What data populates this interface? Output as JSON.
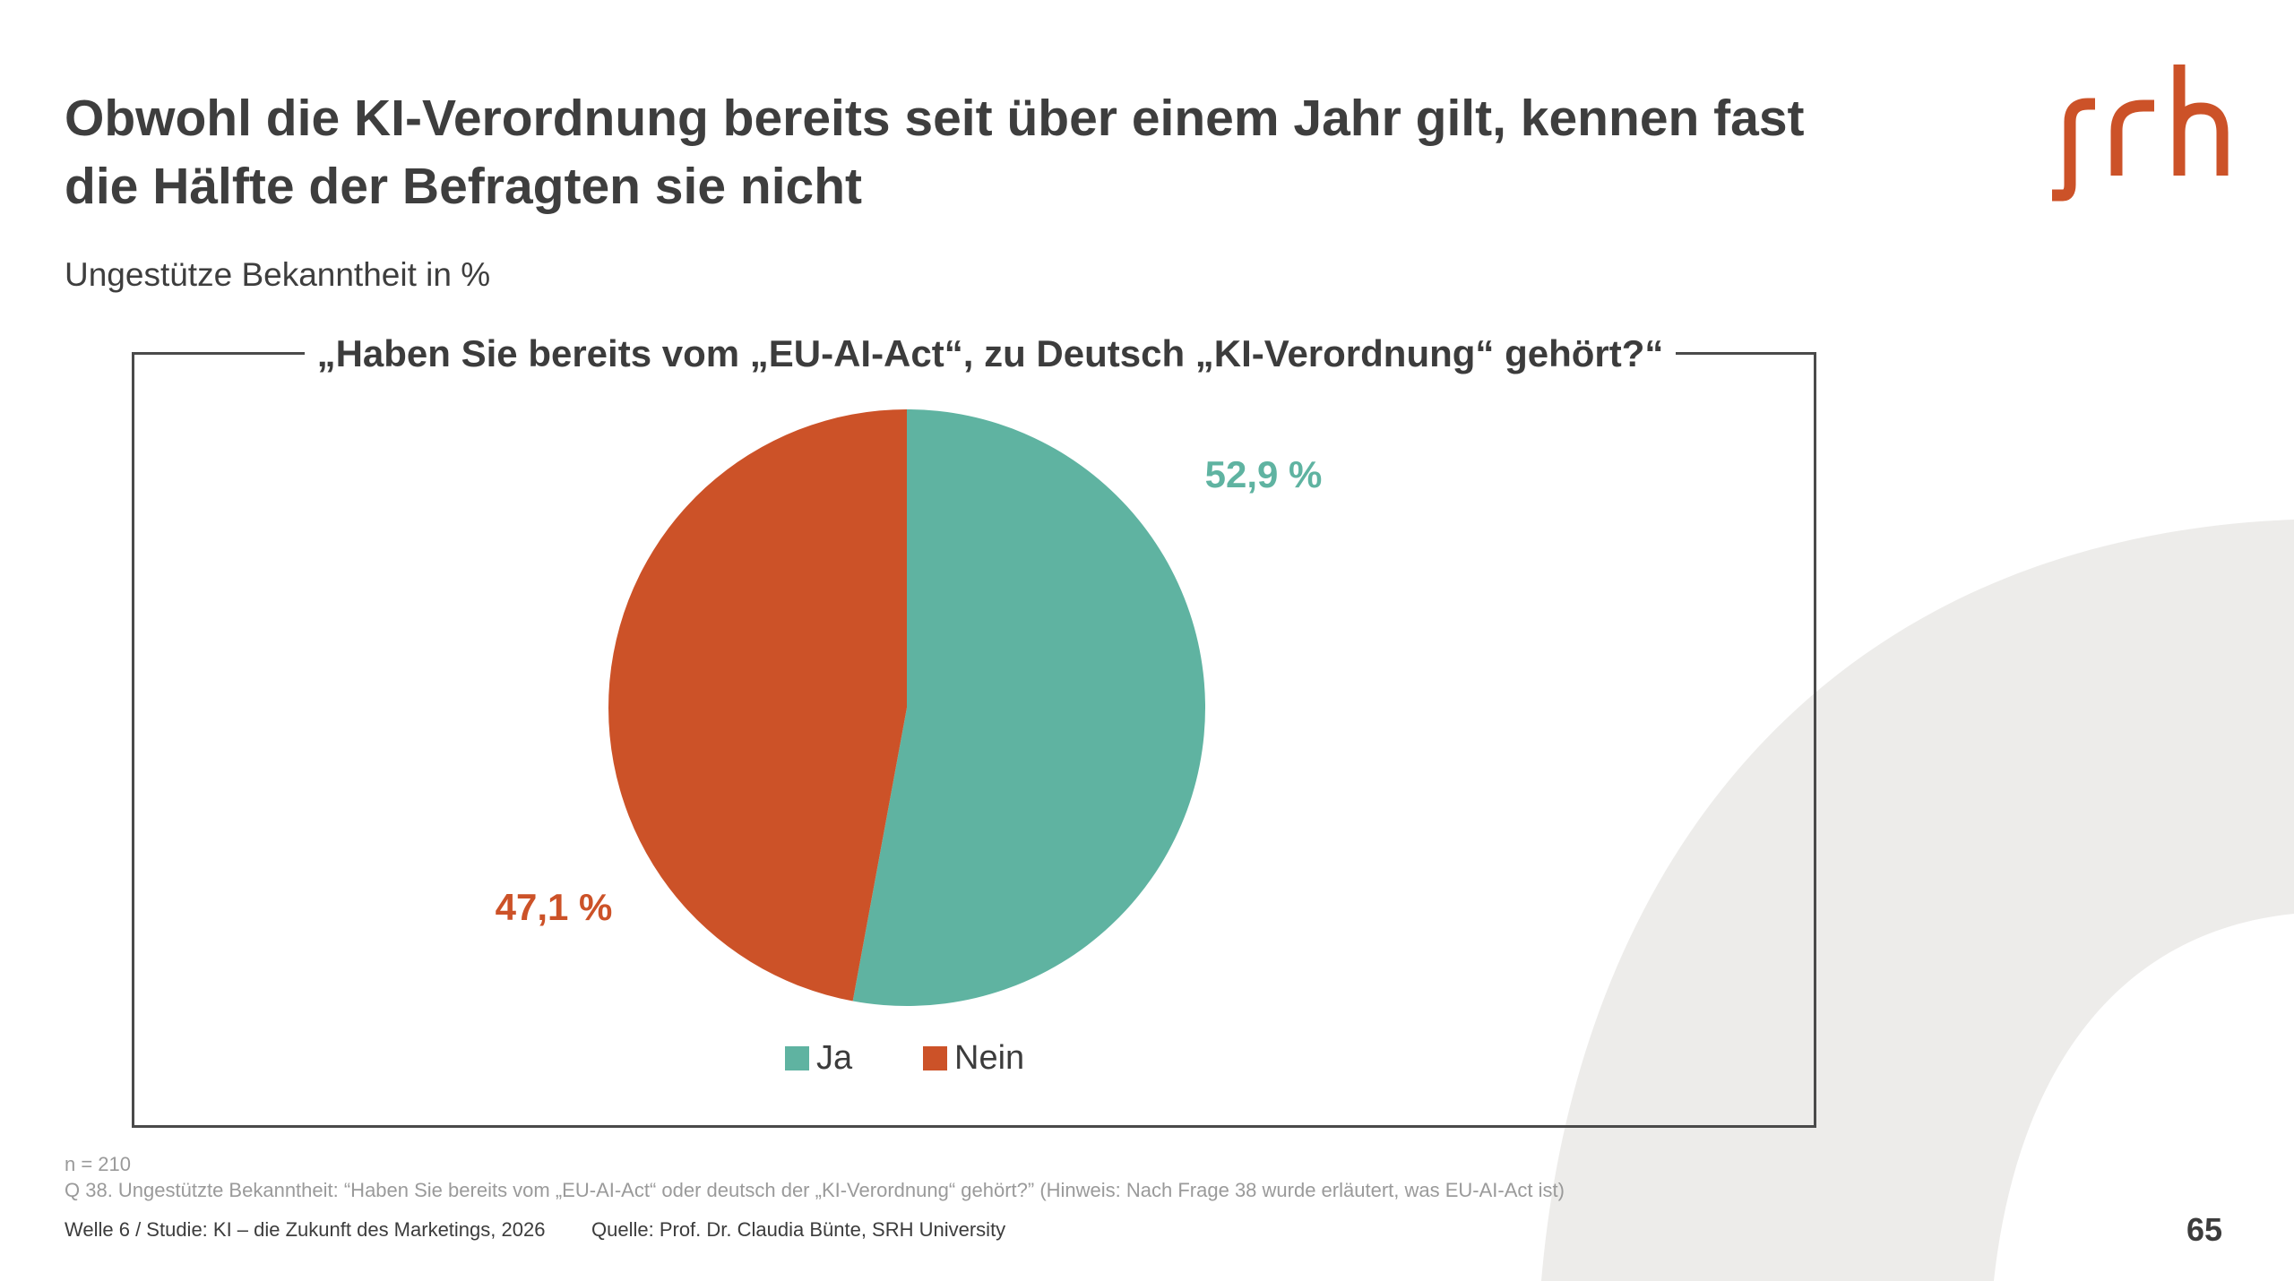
{
  "title": "Obwohl die KI-Verordnung bereits seit über einem Jahr gilt, kennen fast die Hälfte der Befragten sie nicht",
  "subtitle": "Ungestütze Bekanntheit in %",
  "logo_text": "srh",
  "colors": {
    "ja": "#5fb3a1",
    "nein": "#cc5228",
    "text": "#3c3c3c",
    "muted": "#9a9a9a",
    "decor": "#edecea"
  },
  "chart_data": {
    "type": "pie",
    "title": "„Haben Sie bereits vom „EU-AI-Act“, zu Deutsch „KI-Verordnung“ gehört?“",
    "unit": "%",
    "categories": [
      "Ja",
      "Nein"
    ],
    "values": [
      52.9,
      47.1
    ],
    "data_labels": [
      "52,9 %",
      "47,1 %"
    ],
    "legend_position": "bottom"
  },
  "footnotes": {
    "n": "n = 210",
    "question": "Q 38. Ungestützte Bekanntheit: “Haben Sie bereits vom „EU-AI-Act“ oder deutsch der „KI-Verordnung“ gehört?” (Hinweis: Nach Frage 38 wurde erläutert, was EU-AI-Act ist)"
  },
  "footer": {
    "study": "Welle 6 / Studie: KI – die Zukunft des Marketings, 2026",
    "source": "Quelle: Prof. Dr. Claudia Bünte, SRH University",
    "page": "65"
  }
}
